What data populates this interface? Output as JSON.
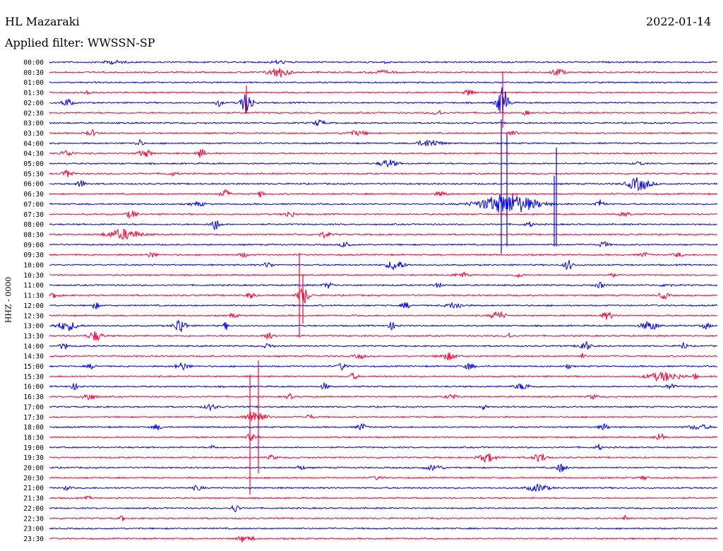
{
  "header": {
    "station": "HL Mazaraki",
    "date": "2022-01-14",
    "filter_text": "Applied filter: WWSSN-SP",
    "channel_label": "HHZ - 0000"
  },
  "colors": {
    "odd_rows": "#0000ff",
    "even_rows": "#ff0033",
    "text": "#000000"
  },
  "rows": [
    {
      "time": "00:00",
      "color": "blue"
    },
    {
      "time": "00:30",
      "color": "red"
    },
    {
      "time": "01:00",
      "color": "blue"
    },
    {
      "time": "01:30",
      "color": "red"
    },
    {
      "time": "02:00",
      "color": "blue"
    },
    {
      "time": "02:30",
      "color": "red"
    },
    {
      "time": "03:00",
      "color": "blue"
    },
    {
      "time": "03:30",
      "color": "red"
    },
    {
      "time": "04:00",
      "color": "blue"
    },
    {
      "time": "04:30",
      "color": "red"
    },
    {
      "time": "05:00",
      "color": "blue"
    },
    {
      "time": "05:30",
      "color": "red"
    },
    {
      "time": "06:00",
      "color": "blue"
    },
    {
      "time": "06:30",
      "color": "red"
    },
    {
      "time": "07:00",
      "color": "blue"
    },
    {
      "time": "07:30",
      "color": "red"
    },
    {
      "time": "08:00",
      "color": "blue"
    },
    {
      "time": "08:30",
      "color": "red"
    },
    {
      "time": "09:00",
      "color": "blue"
    },
    {
      "time": "09:30",
      "color": "red"
    },
    {
      "time": "10:00",
      "color": "blue"
    },
    {
      "time": "10:30",
      "color": "red"
    },
    {
      "time": "11:00",
      "color": "blue"
    },
    {
      "time": "11:30",
      "color": "red"
    },
    {
      "time": "12:00",
      "color": "blue"
    },
    {
      "time": "12:30",
      "color": "red"
    },
    {
      "time": "13:00",
      "color": "blue"
    },
    {
      "time": "13:30",
      "color": "red"
    },
    {
      "time": "14:00",
      "color": "blue"
    },
    {
      "time": "14:30",
      "color": "red"
    },
    {
      "time": "15:00",
      "color": "blue"
    },
    {
      "time": "15:30",
      "color": "red"
    },
    {
      "time": "16:00",
      "color": "blue"
    },
    {
      "time": "16:30",
      "color": "red"
    },
    {
      "time": "17:00",
      "color": "blue"
    },
    {
      "time": "17:30",
      "color": "red"
    },
    {
      "time": "18:00",
      "color": "blue"
    },
    {
      "time": "18:30",
      "color": "red"
    },
    {
      "time": "19:00",
      "color": "blue"
    },
    {
      "time": "19:30",
      "color": "red"
    },
    {
      "time": "20:00",
      "color": "blue"
    },
    {
      "time": "20:30",
      "color": "red"
    },
    {
      "time": "21:00",
      "color": "blue"
    },
    {
      "time": "21:30",
      "color": "red"
    },
    {
      "time": "22:00",
      "color": "blue"
    },
    {
      "time": "22:30",
      "color": "red"
    },
    {
      "time": "23:00",
      "color": "blue"
    },
    {
      "time": "23:30",
      "color": "red"
    }
  ]
}
